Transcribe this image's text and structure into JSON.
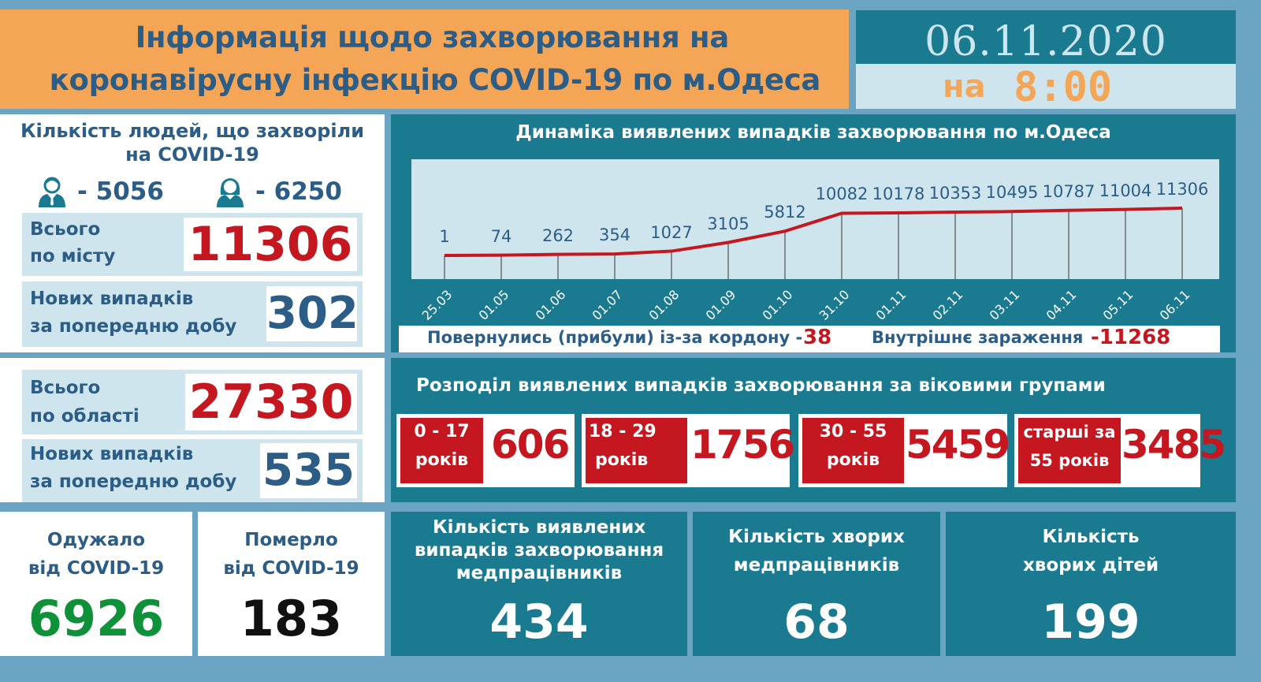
{
  "header": {
    "title_line1": "Інформація щодо захворювання на",
    "title_line2": "коронавірусну інфекцію COVID-19 по м.Одеса",
    "date": "06.11.2020",
    "time_prefix": "на",
    "time": "8:00"
  },
  "city": {
    "title_line1": "Кількість людей, що захворіли",
    "title_line2": "на COVID-19",
    "male_icon": "male-user-icon",
    "male_count": "- 5056",
    "female_icon": "female-user-icon",
    "female_count": "- 6250",
    "total_label_line1": "Всього",
    "total_label_line2": "по місту",
    "total_value": "11306",
    "new_label_line1": "Нових випадків",
    "new_label_line2": "за попередню добу",
    "new_value": "302"
  },
  "region": {
    "total_label_line1": "Всього",
    "total_label_line2": "по області",
    "total_value": "27330",
    "new_label_line1": "Нових випадків",
    "new_label_line2": "за попередню добу",
    "new_value": "535"
  },
  "recovered": {
    "label_line1": "Одужало",
    "label_line2": "від COVID-19",
    "value": "6926"
  },
  "deaths": {
    "label_line1": "Померло",
    "label_line2": "від COVID-19",
    "value": "183"
  },
  "chart": {
    "title": "Динаміка виявлених випадків захворювання по м.Одеса",
    "border_label": "Повернулись (прибули) із-за кордону -",
    "border_value": "38",
    "internal_label": "Внутрішнє зараження",
    "internal_value": "-11268"
  },
  "chart_data": {
    "type": "line",
    "title": "Динаміка виявлених випадків захворювання по м.Одеса",
    "categories": [
      "25.03",
      "01.05",
      "01.06",
      "01.07",
      "01.08",
      "01.09",
      "01.10",
      "31.10",
      "01.11",
      "02.11",
      "03.11",
      "04.11",
      "05.11",
      "06.11"
    ],
    "values": [
      1,
      74,
      262,
      354,
      1027,
      3105,
      5812,
      10082,
      10178,
      10353,
      10495,
      10787,
      11004,
      11306
    ],
    "xlabel": "",
    "ylabel": "",
    "grid": false,
    "series_color": "#c4171f"
  },
  "age": {
    "title": "Розподіл виявлених випадків захворювання за віковими групами",
    "groups": [
      {
        "line1": "0 - 17",
        "line2": "років",
        "value": "606"
      },
      {
        "line1": "18 - 29",
        "line2": "років",
        "value": "1756"
      },
      {
        "line1": "30 - 55",
        "line2": "років",
        "value": "5459"
      },
      {
        "line1": "старші за",
        "line2": "55 років",
        "value": "3485"
      }
    ]
  },
  "medical": {
    "detected_line1": "Кількість виявлених",
    "detected_line2": "випадків захворювання",
    "detected_line3": "медпрацівників",
    "detected_value": "434",
    "sick_line1": "Кількість хворих",
    "sick_line2": "медпрацівників",
    "sick_value": "68",
    "children_line1": "Кількість",
    "children_line2": "хворих дітей",
    "children_value": "199"
  },
  "colors": {
    "orange": "#f5a556",
    "teal": "#1a7b90",
    "light_blue": "#cfe5ee",
    "navy_text": "#2c5d86",
    "red": "#c4171f",
    "green": "#0e9138",
    "frame": "#6ba3c3"
  }
}
